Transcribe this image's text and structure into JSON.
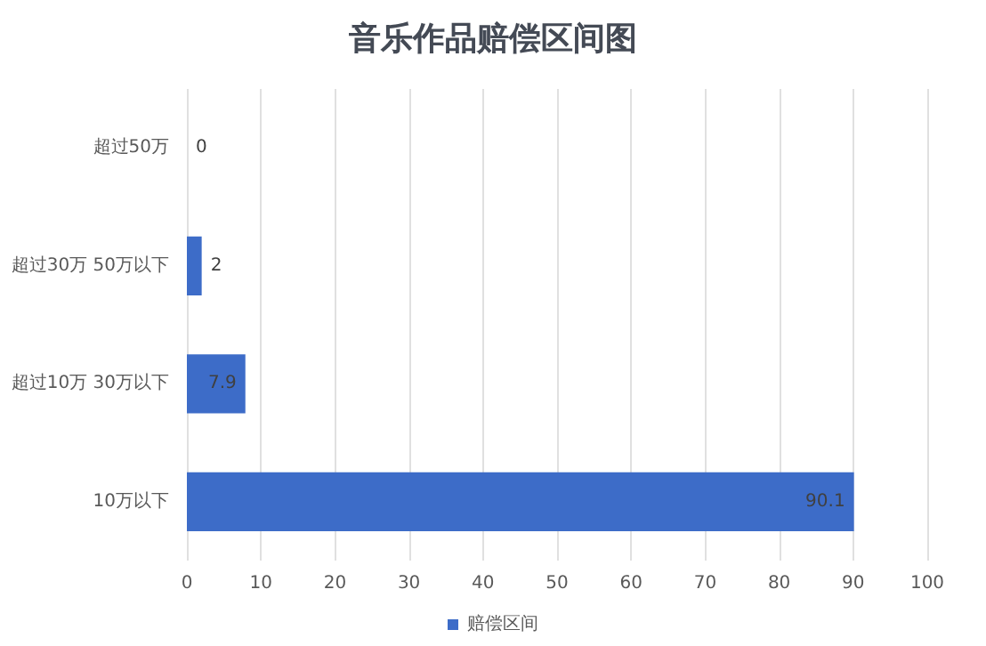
{
  "chart_data": {
    "type": "bar",
    "orientation": "horizontal",
    "title": "音乐作品赔偿区间图",
    "categories": [
      "超过50万",
      "超过30万 50万以下",
      "超过10万 30万以下",
      "10万以下"
    ],
    "series": [
      {
        "name": "赔偿区间",
        "color": "#3d6cc8",
        "values": [
          0,
          2,
          7.9,
          90.1
        ]
      }
    ],
    "xlim": [
      0,
      100
    ],
    "xticks": [
      0,
      10,
      20,
      30,
      40,
      50,
      60,
      70,
      80,
      90,
      100
    ],
    "grid": "x",
    "legend": "bottom",
    "data_labels": true
  }
}
